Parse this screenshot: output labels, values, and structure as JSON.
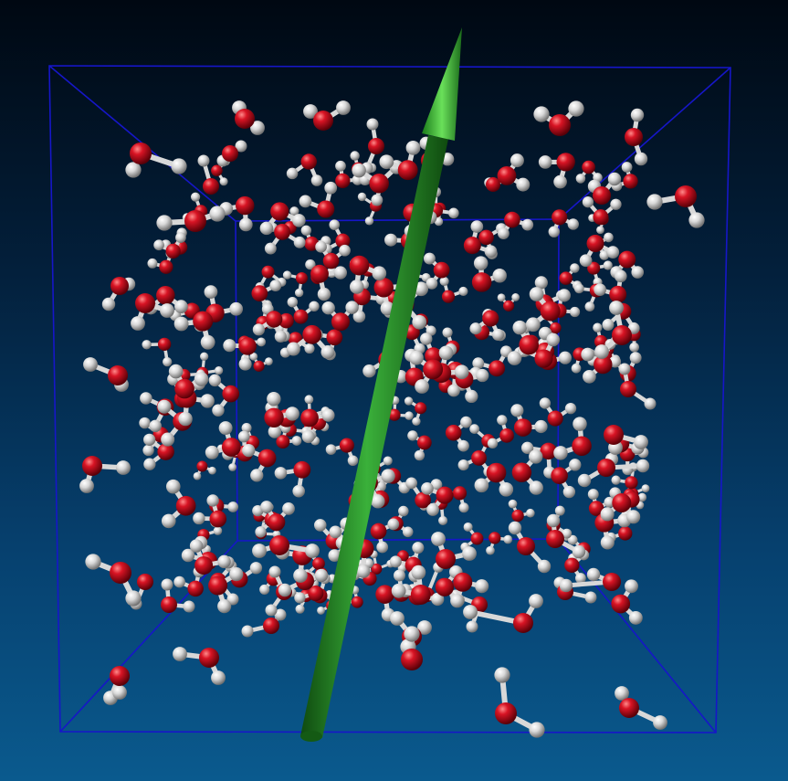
{
  "scene": {
    "subject": "molecular-dynamics-water-box",
    "colors": {
      "background_top": "#000812",
      "background_bottom": "#0a5a8e",
      "box_edges": "#1616c8",
      "oxygen": "#cc1020",
      "hydrogen": "#e6e6e6",
      "bond": "#d8d8d8",
      "arrow": "#2a9a2a",
      "arrow_head": "#4ccc3c"
    }
  }
}
